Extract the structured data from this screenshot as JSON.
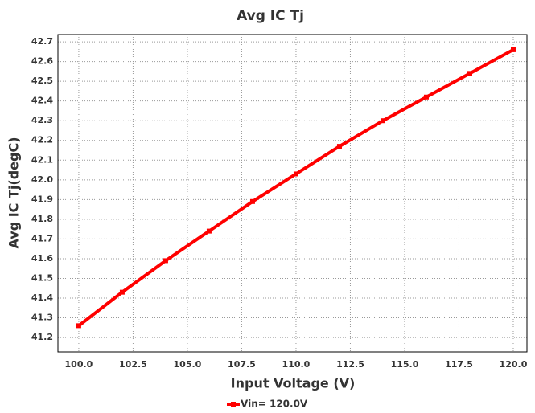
{
  "chart_data": {
    "type": "line",
    "title": "Avg IC Tj",
    "x_label": "Input Voltage (V)",
    "y_label": "Avg IC Tj(degC)",
    "x": [
      100,
      102,
      104,
      106,
      108,
      110,
      112,
      114,
      116,
      118,
      120
    ],
    "series": [
      {
        "name": "Vin= 120.0V",
        "color": "#ff0000",
        "values": [
          41.26,
          41.43,
          41.59,
          41.74,
          41.89,
          42.03,
          42.17,
          42.3,
          42.42,
          42.54,
          42.66
        ]
      }
    ],
    "xlim": [
      99.04,
      120.63
    ],
    "ylim": [
      41.127,
      42.737
    ],
    "xticks": [
      {
        "value": 100,
        "label": "100.0"
      },
      {
        "value": 102.5,
        "label": "102.5"
      },
      {
        "value": 105,
        "label": "105.0"
      },
      {
        "value": 107.5,
        "label": "107.5"
      },
      {
        "value": 110,
        "label": "110.0"
      },
      {
        "value": 112.5,
        "label": "112.5"
      },
      {
        "value": 115,
        "label": "115.0"
      },
      {
        "value": 117.5,
        "label": "117.5"
      },
      {
        "value": 120,
        "label": "120.0"
      }
    ],
    "yticks": [
      41.2,
      41.3,
      41.4,
      41.5,
      41.6,
      41.7,
      41.8,
      41.9,
      {
        "value": 42,
        "label": "42.0"
      },
      42.1,
      42.2,
      42.3,
      42.4,
      42.5,
      42.6,
      42.7
    ],
    "grid": true,
    "legend": "bottom"
  }
}
